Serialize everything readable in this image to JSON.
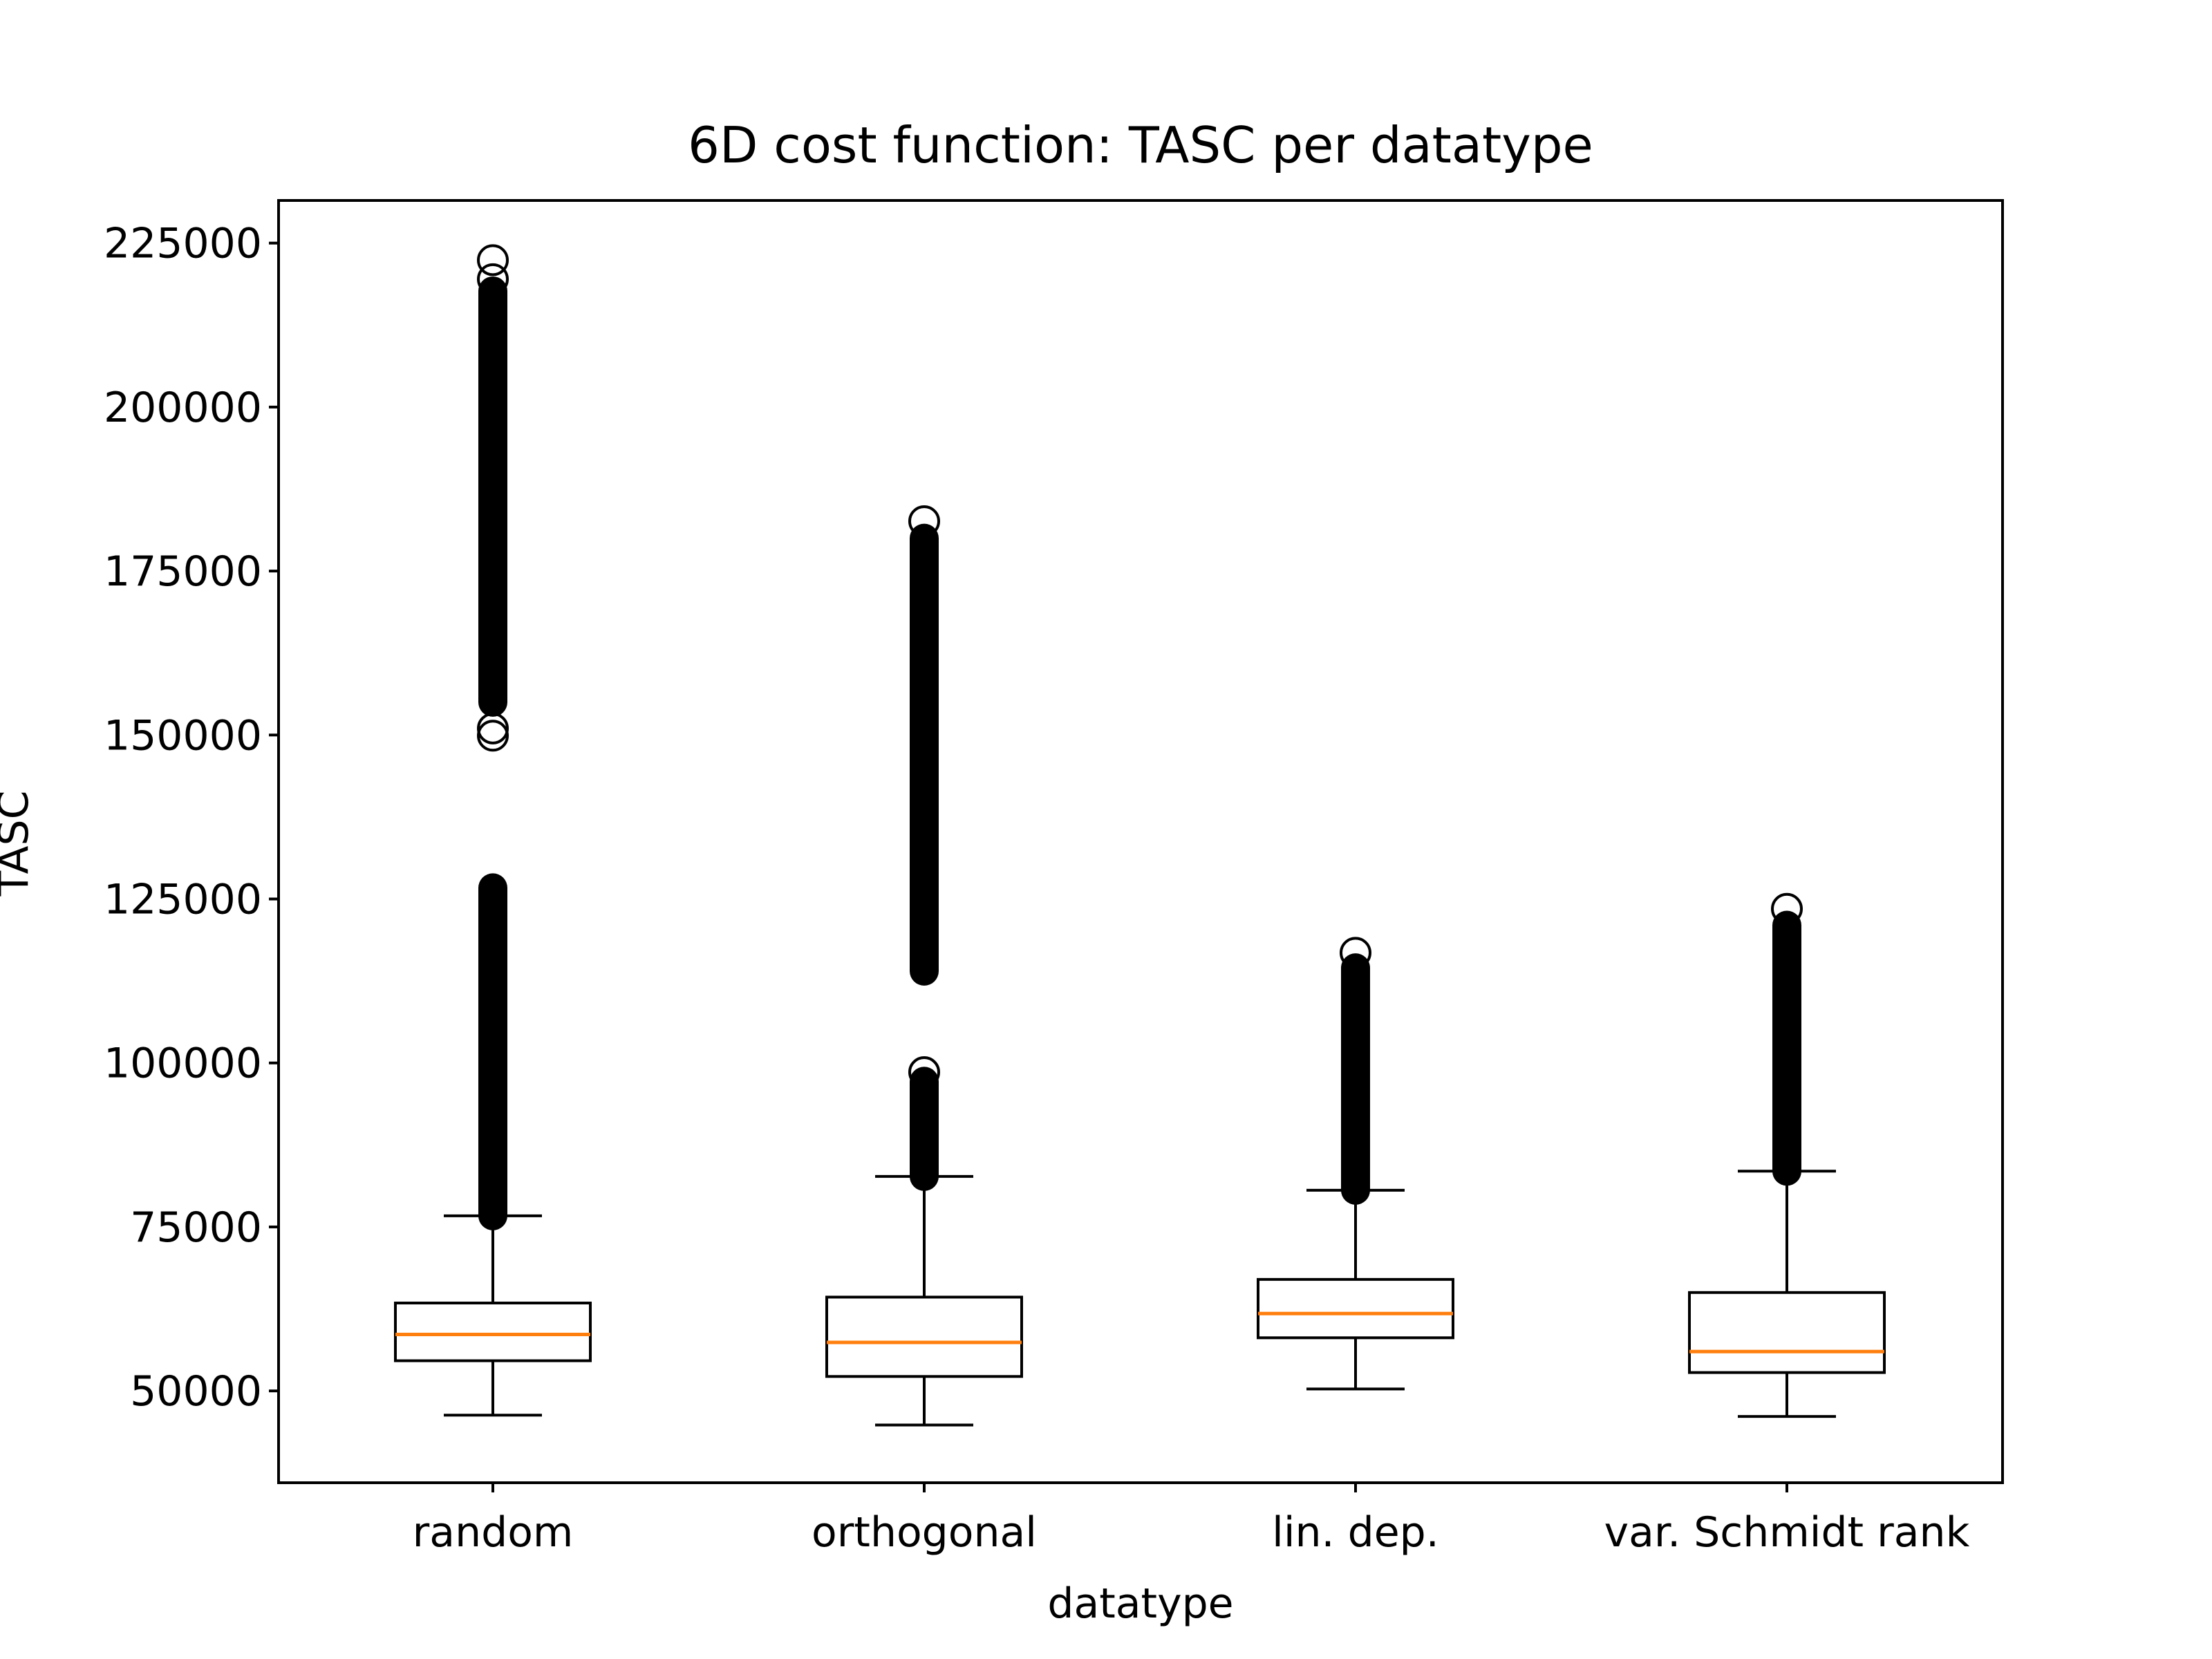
{
  "chart_data": {
    "type": "box",
    "title": "6D cost function: TASC per datatype",
    "xlabel": "datatype",
    "ylabel": "TASC",
    "categories": [
      "random",
      "orthogonal",
      "lin. dep.",
      "var. Schmidt rank"
    ],
    "ylim": [
      36000,
      231500
    ],
    "yticks": [
      50000,
      75000,
      100000,
      125000,
      150000,
      175000,
      200000,
      225000
    ],
    "ytick_labels": [
      "50000",
      "75000",
      "100000",
      "125000",
      "150000",
      "175000",
      "200000",
      "225000"
    ],
    "grid": false,
    "legend": "none",
    "boxes": [
      {
        "category": "random",
        "whisker_low": 46300,
        "q1": 54600,
        "median": 58600,
        "q3": 63400,
        "whisker_high": 76700,
        "outlier_bands": [
          [
            76700,
            126700
          ],
          [
            155000,
            217700
          ]
        ],
        "outliers": [
          149900,
          151000,
          219500,
          222400
        ]
      },
      {
        "category": "orthogonal",
        "whisker_low": 44800,
        "q1": 52200,
        "median": 57400,
        "q3": 64300,
        "whisker_high": 82700,
        "outlier_bands": [
          [
            82700,
            97200
          ],
          [
            114000,
            180000
          ]
        ],
        "outliers": [
          98600,
          182600
        ]
      },
      {
        "category": "lin. dep.",
        "whisker_low": 50300,
        "q1": 58100,
        "median": 61800,
        "q3": 67000,
        "whisker_high": 80600,
        "outlier_bands": [
          [
            80600,
            114500
          ]
        ],
        "outliers": [
          116800
        ]
      },
      {
        "category": "var. Schmidt rank",
        "whisker_low": 46100,
        "q1": 52800,
        "median": 56000,
        "q3": 65000,
        "whisker_high": 83500,
        "outlier_bands": [
          [
            83500,
            121000
          ]
        ],
        "outliers": [
          123500
        ]
      }
    ],
    "colors": {
      "box": "#000000",
      "median": "#ff7f0e",
      "outlier": "#000000"
    }
  }
}
